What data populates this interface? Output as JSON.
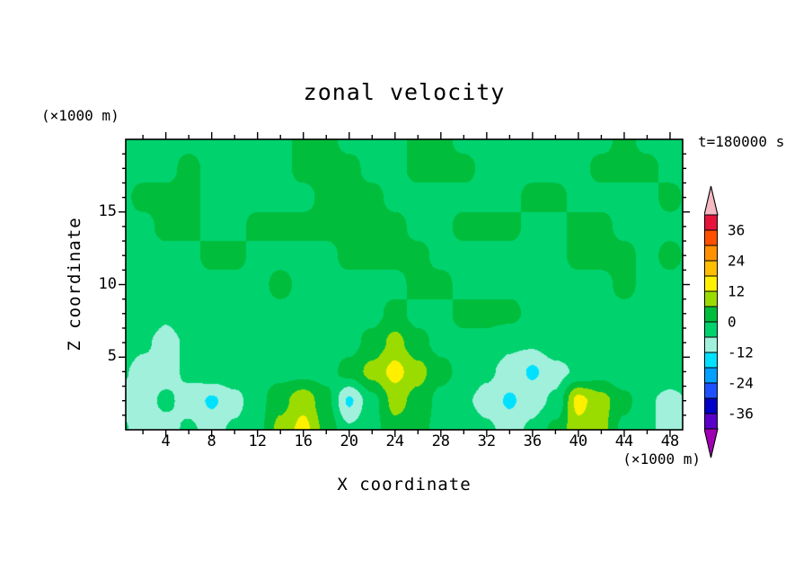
{
  "title": "zonal velocity",
  "time_label": "t=180000 s",
  "axes": {
    "x_label": "X coordinate",
    "y_label": "Z coordinate",
    "x_unit": "(×1000 m)",
    "z_unit": "(×1000 m)",
    "x_ticks": [
      4,
      8,
      12,
      16,
      20,
      24,
      28,
      32,
      36,
      40,
      44,
      48
    ],
    "y_ticks": [
      5,
      10,
      15
    ]
  },
  "chart_data": {
    "type": "heatmap",
    "title": "zonal velocity",
    "xlabel": "X coordinate (×1000 m)",
    "ylabel": "Z coordinate (×1000 m)",
    "time": "t=180000 s",
    "x_range": [
      0.5,
      49.1
    ],
    "z_range": [
      0,
      20
    ],
    "contour_interval": 6,
    "levels": [
      -42,
      -36,
      -30,
      -24,
      -18,
      -12,
      -6,
      0,
      6,
      12,
      18,
      24,
      30,
      36,
      42
    ],
    "colors": [
      "#5A00C8",
      "#0000C8",
      "#1E50FF",
      "#00A0FF",
      "#00E1FF",
      "#A0F0DC",
      "#00D26E",
      "#00BE3C",
      "#9BDC00",
      "#FFF000",
      "#FFBE00",
      "#FF9100",
      "#FF5000",
      "#E6143C"
    ],
    "under_color": "#A000B4",
    "over_color": "#F5B9C3",
    "colorbar_labels": [
      36,
      24,
      12,
      0,
      -12,
      -24,
      -36
    ],
    "grid": {
      "order": "rows run z-ascending (bottom row first), columns x-ascending",
      "x": [
        0,
        2,
        4,
        6,
        8,
        10,
        12,
        14,
        16,
        18,
        20,
        22,
        24,
        26,
        28,
        30,
        32,
        34,
        36,
        38,
        40,
        42,
        44,
        46,
        48,
        50
      ],
      "z": [
        0,
        2,
        4,
        6,
        8,
        10,
        12,
        14,
        16,
        18,
        20
      ],
      "values": [
        [
          -5,
          -8,
          -8,
          -5,
          -8,
          -5,
          -2,
          8,
          14,
          4,
          -5,
          -2,
          4,
          2,
          -2,
          -2,
          -5,
          -8,
          -5,
          2,
          10,
          8,
          -2,
          -5,
          -8,
          -8
        ],
        [
          -8,
          -8,
          -5,
          -8,
          -13,
          -8,
          -2,
          4,
          10,
          2,
          -13,
          -2,
          8,
          4,
          -2,
          -5,
          -8,
          -13,
          -8,
          -5,
          14,
          8,
          2,
          -5,
          -8,
          -5
        ],
        [
          -5,
          -8,
          -8,
          -5,
          -2,
          -2,
          -2,
          -2,
          -2,
          -2,
          2,
          8,
          14,
          8,
          2,
          -2,
          -5,
          -8,
          -13,
          -8,
          -5,
          -2,
          -5,
          -2,
          -2,
          -2
        ],
        [
          -2,
          -5,
          -8,
          -5,
          -2,
          -2,
          -2,
          -2,
          -2,
          -2,
          -2,
          2,
          8,
          2,
          -2,
          -2,
          -2,
          -5,
          -5,
          -2,
          -2,
          -2,
          -2,
          -2,
          -2,
          -2
        ],
        [
          -2,
          -2,
          -5,
          -2,
          -2,
          -2,
          -2,
          -2,
          -2,
          -2,
          -2,
          -2,
          2,
          -2,
          -2,
          2,
          2,
          2,
          -2,
          -2,
          -2,
          -2,
          -2,
          -2,
          -2,
          -2
        ],
        [
          -2,
          -2,
          -2,
          -2,
          -2,
          -2,
          -2,
          2,
          -2,
          -2,
          -2,
          -2,
          -2,
          2,
          2,
          -2,
          -2,
          -2,
          -2,
          -2,
          -2,
          -2,
          2,
          -2,
          -2,
          -2
        ],
        [
          -2,
          -2,
          -2,
          -2,
          2,
          2,
          -2,
          -2,
          -2,
          -2,
          2,
          2,
          2,
          2,
          -2,
          -2,
          -2,
          -2,
          -2,
          -2,
          2,
          2,
          2,
          -2,
          2,
          -2
        ],
        [
          -2,
          -2,
          2,
          2,
          -2,
          -2,
          2,
          2,
          2,
          2,
          2,
          2,
          2,
          -2,
          -2,
          2,
          2,
          2,
          -2,
          -2,
          2,
          2,
          -2,
          -2,
          -2,
          -2
        ],
        [
          -2,
          2,
          2,
          2,
          -2,
          -2,
          -2,
          -2,
          -2,
          2,
          2,
          2,
          -2,
          -2,
          -2,
          -2,
          -2,
          -2,
          2,
          2,
          -2,
          -2,
          -2,
          -2,
          2,
          -2
        ],
        [
          -2,
          -2,
          -2,
          2,
          -2,
          -2,
          -2,
          -2,
          2,
          2,
          2,
          -2,
          -2,
          2,
          2,
          2,
          -2,
          -2,
          -2,
          -2,
          -2,
          2,
          2,
          2,
          -2,
          -2
        ],
        [
          -2,
          -2,
          -2,
          -2,
          -2,
          -2,
          -2,
          -2,
          2,
          2,
          -2,
          -2,
          -2,
          2,
          2,
          -2,
          -2,
          -2,
          -2,
          -2,
          -2,
          -2,
          2,
          -2,
          -2,
          -2
        ]
      ]
    }
  }
}
